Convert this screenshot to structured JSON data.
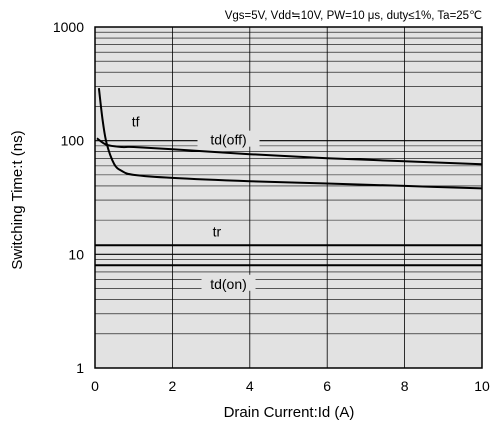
{
  "chart_data": {
    "type": "line",
    "title": "Vgs=5V, Vdd≒10V, PW=10 μs, duty≤1%, Ta=25℃",
    "xlabel": "Drain Current:Id  (A)",
    "ylabel": "Switching Time:t  (ns)",
    "xscale": "linear",
    "yscale": "log",
    "xlim": [
      0,
      10
    ],
    "ylim": [
      1,
      1000
    ],
    "xticks": [
      "0",
      "2",
      "4",
      "6",
      "8",
      "10"
    ],
    "yticks": [
      "1",
      "10",
      "100",
      "1000"
    ],
    "grid": true,
    "series": [
      {
        "name": "tf",
        "x": [
          0.1,
          0.2,
          0.3,
          0.5,
          0.7,
          1.0,
          2.0,
          4.0,
          6.0,
          8.0,
          10.0
        ],
        "y": [
          290,
          150,
          95,
          62,
          54,
          50,
          47,
          44,
          42,
          40,
          38
        ]
      },
      {
        "name": "td(off)",
        "x": [
          0.05,
          0.3,
          0.7,
          1.0,
          2.0,
          4.0,
          6.0,
          8.0,
          10.0
        ],
        "y": [
          105,
          92,
          88,
          88,
          84,
          76,
          70,
          66,
          62
        ]
      },
      {
        "name": "tr",
        "x": [
          0,
          10
        ],
        "y": [
          12,
          12
        ]
      },
      {
        "name": "td(on)",
        "x": [
          0,
          10
        ],
        "y": [
          8,
          8
        ]
      }
    ]
  }
}
